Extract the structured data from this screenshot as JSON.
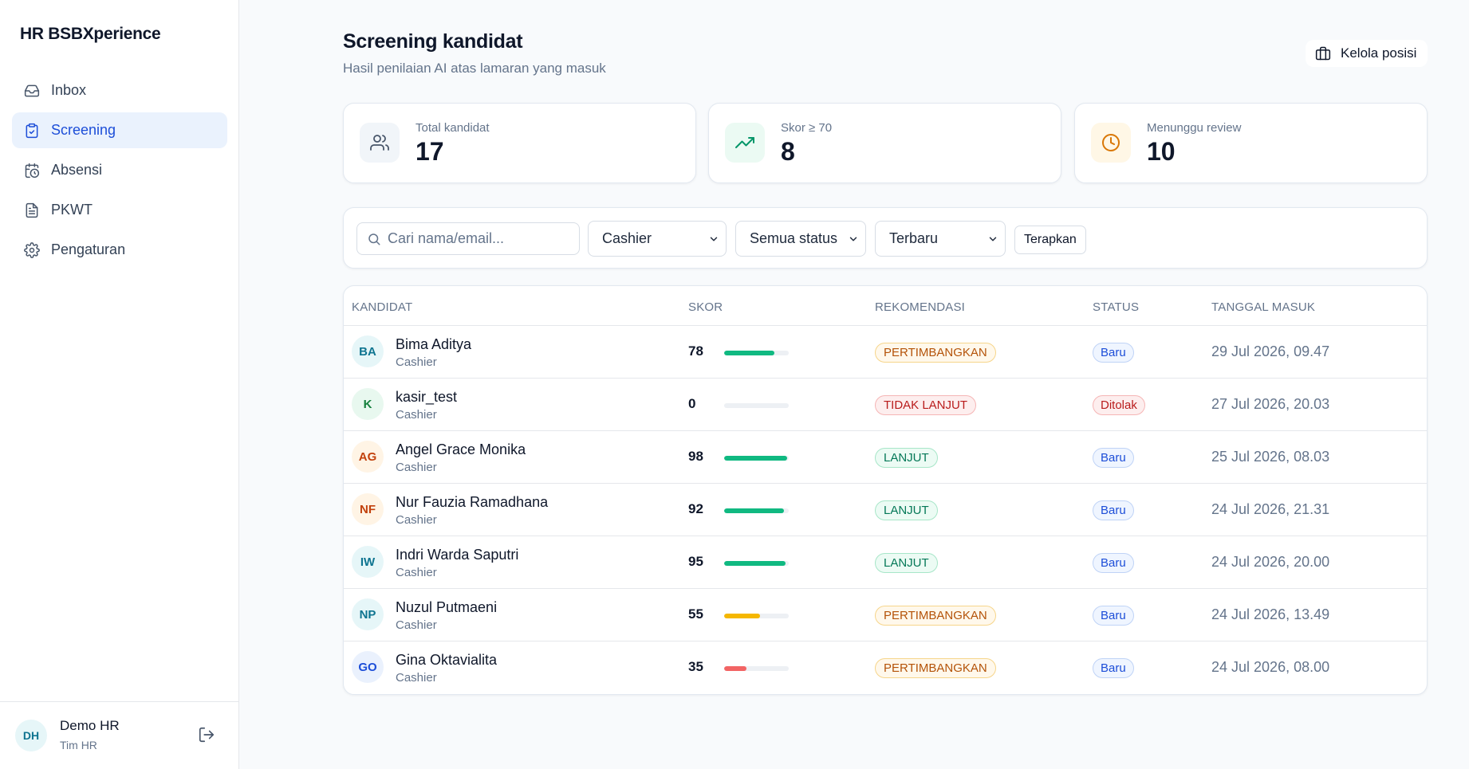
{
  "colors": {
    "accent": "#1d4ed8",
    "bar_high": "#10b981",
    "bar_mid": "#f5b700",
    "bar_low": "#f26464"
  },
  "sidebar": {
    "brand": "HR BSBXperience",
    "items": [
      {
        "label": "Inbox",
        "icon": "inbox-icon",
        "active": false
      },
      {
        "label": "Screening",
        "icon": "clipboard-check-icon",
        "active": true
      },
      {
        "label": "Absensi",
        "icon": "calendar-clock-icon",
        "active": false
      },
      {
        "label": "PKWT",
        "icon": "file-text-icon",
        "active": false
      },
      {
        "label": "Pengaturan",
        "icon": "gear-icon",
        "active": false
      }
    ],
    "user": {
      "initials": "DH",
      "name": "Demo HR",
      "role": "Tim HR"
    }
  },
  "header": {
    "title": "Screening kandidat",
    "subtitle": "Hasil penilaian AI atas lamaran yang masuk",
    "manage_button": "Kelola posisi"
  },
  "stats": [
    {
      "label": "Total kandidat",
      "value": "17",
      "icon": "users-icon"
    },
    {
      "label": "Skor ≥ 70",
      "value": "8",
      "icon": "trending-up-icon"
    },
    {
      "label": "Menunggu review",
      "value": "10",
      "icon": "clock-icon"
    }
  ],
  "filters": {
    "search_placeholder": "Cari nama/email...",
    "position": "Cashier",
    "status": "Semua status",
    "sort": "Terbaru",
    "apply_button": "Terapkan"
  },
  "table": {
    "columns": [
      "KANDIDAT",
      "SKOR",
      "REKOMENDASI",
      "STATUS",
      "TANGGAL MASUK"
    ],
    "rows": [
      {
        "initials": "BA",
        "name": "Bima Aditya",
        "position": "Cashier",
        "score": 78,
        "recommendation": "PERTIMBANGKAN",
        "status": "Baru",
        "date": "29 Jul 2026, 09.47"
      },
      {
        "initials": "K",
        "name": "kasir_test",
        "position": "Cashier",
        "score": 0,
        "recommendation": "TIDAK LANJUT",
        "status": "Ditolak",
        "date": "27 Jul 2026, 20.03"
      },
      {
        "initials": "AG",
        "name": "Angel Grace Monika",
        "position": "Cashier",
        "score": 98,
        "recommendation": "LANJUT",
        "status": "Baru",
        "date": "25 Jul 2026, 08.03"
      },
      {
        "initials": "NF",
        "name": "Nur Fauzia Ramadhana",
        "position": "Cashier",
        "score": 92,
        "recommendation": "LANJUT",
        "status": "Baru",
        "date": "24 Jul 2026, 21.31"
      },
      {
        "initials": "IW",
        "name": "Indri Warda Saputri",
        "position": "Cashier",
        "score": 95,
        "recommendation": "LANJUT",
        "status": "Baru",
        "date": "24 Jul 2026, 20.00"
      },
      {
        "initials": "NP",
        "name": "Nuzul Putmaeni",
        "position": "Cashier",
        "score": 55,
        "recommendation": "PERTIMBANGKAN",
        "status": "Baru",
        "date": "24 Jul 2026, 13.49"
      },
      {
        "initials": "GO",
        "name": "Gina Oktavialita",
        "position": "Cashier",
        "score": 35,
        "recommendation": "PERTIMBANGKAN",
        "status": "Baru",
        "date": "24 Jul 2026, 08.00"
      }
    ]
  }
}
